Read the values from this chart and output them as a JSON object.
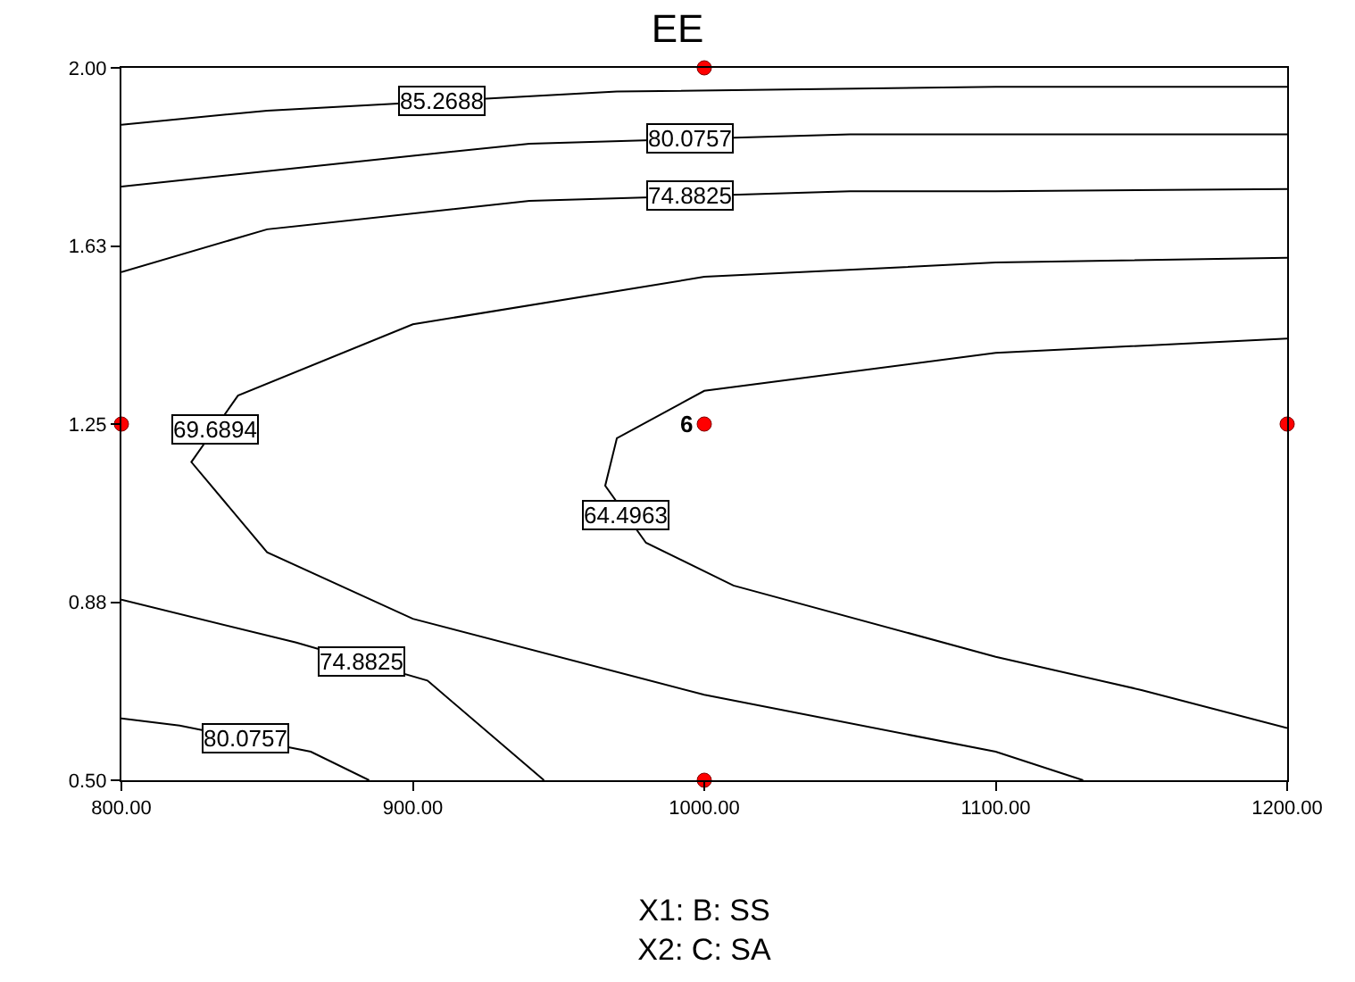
{
  "chart_data": {
    "type": "line",
    "title": "EE",
    "xlabel": "X1: B: SS\nX2: C: SA",
    "xlim": [
      800,
      1200
    ],
    "ylim": [
      0.5,
      2.0
    ],
    "xticks": [
      {
        "value": 800,
        "label": "800.00"
      },
      {
        "value": 900,
        "label": "900.00"
      },
      {
        "value": 1000,
        "label": "1000.00"
      },
      {
        "value": 1100,
        "label": "1100.00"
      },
      {
        "value": 1200,
        "label": "1200.00"
      }
    ],
    "yticks": [
      {
        "value": 0.5,
        "label": "0.50"
      },
      {
        "value": 0.875,
        "label": "0.88"
      },
      {
        "value": 1.25,
        "label": "1.25"
      },
      {
        "value": 1.625,
        "label": "1.63"
      },
      {
        "value": 2.0,
        "label": "2.00"
      }
    ],
    "legend": false,
    "series": [
      {
        "name": "85.2688",
        "color": "#000000",
        "x": [
          800,
          850,
          970,
          1100,
          1200
        ],
        "values": [
          1.88,
          1.91,
          1.95,
          1.96,
          1.96
        ]
      },
      {
        "name": "80.0757",
        "color": "#000000",
        "x": [
          800,
          900,
          940,
          1050,
          1100,
          1200
        ],
        "values": [
          1.75,
          1.815,
          1.84,
          1.86,
          1.86,
          1.86
        ]
      },
      {
        "name": "74.8825",
        "color": "#000000",
        "x": [
          800,
          850,
          940,
          1050,
          1100,
          1200
        ],
        "values": [
          1.57,
          1.66,
          1.72,
          1.74,
          1.74,
          1.745
        ]
      },
      {
        "name": "69.6894",
        "color": "#000000",
        "x": [
          1200,
          1100,
          1000,
          900,
          840,
          824,
          850,
          900,
          1000,
          1100,
          1130
        ],
        "values": [
          1.6,
          1.59,
          1.56,
          1.46,
          1.31,
          1.17,
          0.98,
          0.84,
          0.68,
          0.56,
          0.5
        ]
      },
      {
        "name": "64.4963",
        "color": "#000000",
        "x": [
          1200,
          1100,
          1000,
          970,
          966,
          980,
          1010,
          1100,
          1150,
          1200
        ],
        "values": [
          1.43,
          1.4,
          1.32,
          1.22,
          1.12,
          1.0,
          0.91,
          0.76,
          0.69,
          0.61
        ]
      },
      {
        "name": "74.8825",
        "color": "#000000",
        "x": [
          800,
          860,
          905,
          945
        ],
        "values": [
          0.88,
          0.79,
          0.71,
          0.5
        ]
      },
      {
        "name": "80.0757",
        "color": "#000000",
        "x": [
          800,
          820,
          865,
          885
        ],
        "values": [
          0.63,
          0.615,
          0.56,
          0.5
        ]
      },
      {
        "type": "scatter",
        "color": "#ff0000",
        "marker": "circle",
        "x": [
          1000,
          800,
          1000,
          1200,
          1000
        ],
        "values": [
          2.0,
          1.25,
          1.25,
          1.25,
          0.5
        ]
      }
    ],
    "annotations": [
      {
        "text": "6",
        "x": 1000,
        "y": 1.25
      }
    ]
  }
}
